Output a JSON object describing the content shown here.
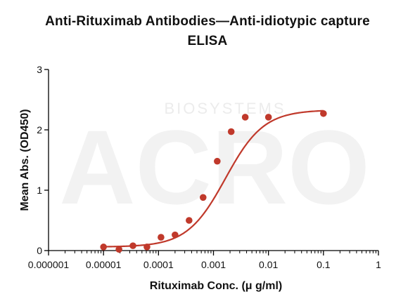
{
  "chart_data": {
    "type": "scatter",
    "title_lines": [
      "Anti-Rituximab Antibodies—Anti-idiotypic capture",
      "ELISA"
    ],
    "xlabel": "Rituximab Conc. (μ g/ml)",
    "ylabel": "Mean Abs. (OD450)",
    "x_scale": "log",
    "xlim": [
      1e-06,
      1
    ],
    "ylim": [
      0,
      3
    ],
    "x_ticks": [
      1e-06,
      1e-05,
      0.0001,
      0.001,
      0.01,
      0.1,
      1
    ],
    "x_tick_labels": [
      "0.000001",
      "0.00001",
      "0.0001",
      "0.001",
      "0.01",
      "0.1",
      "1"
    ],
    "y_ticks": [
      0,
      1,
      2,
      3
    ],
    "y_tick_labels": [
      "0",
      "1",
      "2",
      "3"
    ],
    "grid": false,
    "series": [
      {
        "color": "#c0392b",
        "x": [
          1e-05,
          1.91e-05,
          3.43e-05,
          6.17e-05,
          0.000111,
          0.0002,
          0.00036,
          0.000648,
          0.00117,
          0.0021,
          0.00378,
          0.01,
          0.1
        ],
        "y": [
          0.06,
          0.02,
          0.08,
          0.06,
          0.22,
          0.26,
          0.5,
          0.88,
          1.48,
          1.97,
          2.21,
          2.21,
          2.27
        ]
      }
    ],
    "fit_curve": {
      "model": "4PL",
      "bottom": 0.06,
      "top": 2.33,
      "ec50": 0.00165,
      "hill": 1.25,
      "color": "#c0392b"
    }
  },
  "watermark": {
    "brand": "ACRO",
    "text": "BIOSYSTEMS"
  }
}
